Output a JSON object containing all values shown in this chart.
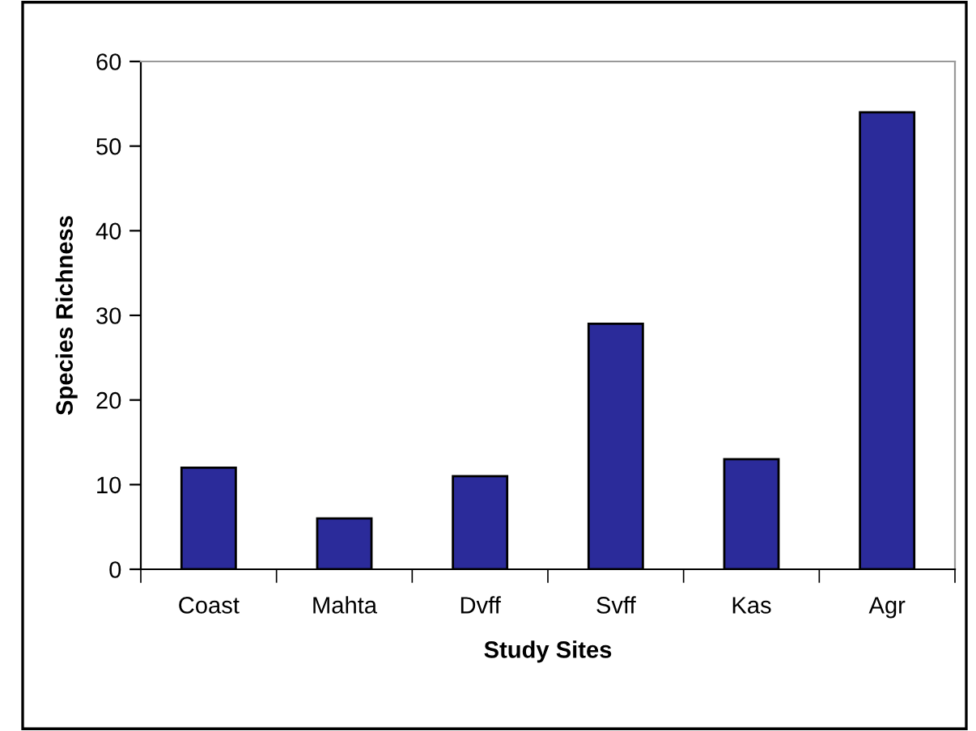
{
  "chart_data": {
    "type": "bar",
    "xlabel": "Study Sites",
    "ylabel": "Species Richness",
    "categories": [
      "Coast",
      "Mahta",
      "Dvff",
      "Svff",
      "Kas",
      "Agr"
    ],
    "values": [
      12,
      6,
      11,
      29,
      13,
      54
    ],
    "color": "#2b2b9a",
    "ylim": [
      0,
      60
    ],
    "yticks": [
      0,
      10,
      20,
      30,
      40,
      50,
      60
    ],
    "grid": false,
    "legend": false
  }
}
